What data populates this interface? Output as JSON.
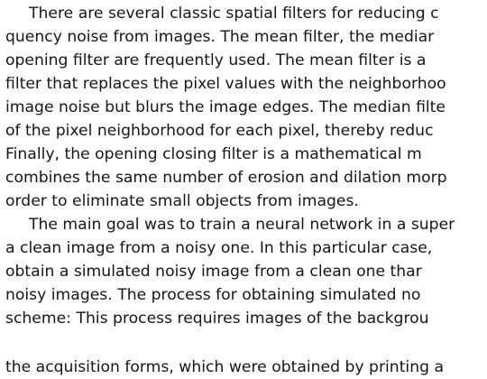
{
  "document": {
    "lines": [
      "There are several classic spatial filters for reducing c",
      "quency noise from images.  The mean filter, the mediar",
      "opening filter are frequently used.  The mean filter is a",
      "filter that replaces the pixel values with the neighborhoo",
      "image noise but blurs the image edges. The median filte",
      "of the pixel neighborhood for each pixel, thereby reduc",
      "Finally,  the  opening  closing  filter  is  a  mathematical  m",
      "combines the same number of erosion and dilation morp",
      "order to eliminate small objects from images.",
      "The main goal was to train a neural network in a super",
      "a clean image from a noisy one.  In this particular case,",
      "obtain  a  simulated  noisy  image  from  a  clean  one  thar",
      "noisy  images.   The  process  for  obtaining  simulated  no",
      "scheme:  This  process  requires  images  of  the  backgrou",
      "the  acquisition  forms,  which  were  obtained  by  printing  a"
    ]
  }
}
